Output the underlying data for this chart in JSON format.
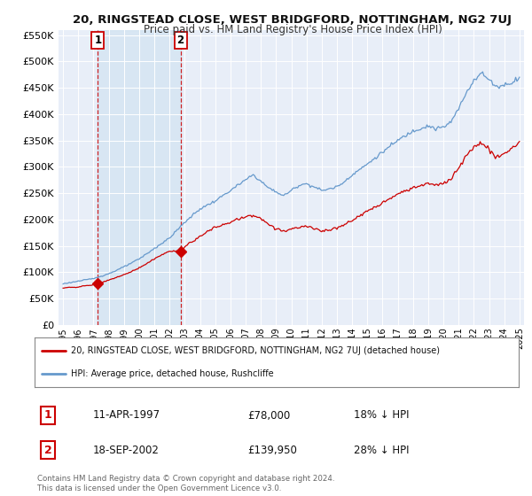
{
  "title": "20, RINGSTEAD CLOSE, WEST BRIDGFORD, NOTTINGHAM, NG2 7UJ",
  "subtitle": "Price paid vs. HM Land Registry's House Price Index (HPI)",
  "legend_line1": "20, RINGSTEAD CLOSE, WEST BRIDGFORD, NOTTINGHAM, NG2 7UJ (detached house)",
  "legend_line2": "HPI: Average price, detached house, Rushcliffe",
  "transaction1_date": "11-APR-1997",
  "transaction1_price": "£78,000",
  "transaction1_hpi": "18% ↓ HPI",
  "transaction2_date": "18-SEP-2002",
  "transaction2_price": "£139,950",
  "transaction2_hpi": "28% ↓ HPI",
  "footer": "Contains HM Land Registry data © Crown copyright and database right 2024.\nThis data is licensed under the Open Government Licence v3.0.",
  "ylim": [
    0,
    560000
  ],
  "yticks": [
    0,
    50000,
    100000,
    150000,
    200000,
    250000,
    300000,
    350000,
    400000,
    450000,
    500000,
    550000
  ],
  "plot_bg_color": "#e8eef8",
  "grid_color": "#ffffff",
  "red_color": "#cc0000",
  "blue_color": "#6699cc",
  "transaction1_x": 1997.28,
  "transaction1_y": 78000,
  "transaction2_x": 2002.72,
  "transaction2_y": 139950,
  "xlim_left": 1994.7,
  "xlim_right": 2025.3
}
